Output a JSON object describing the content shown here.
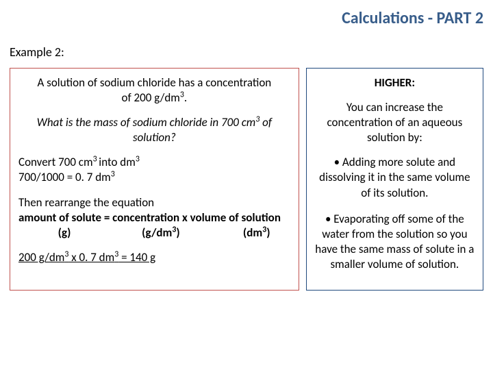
{
  "colors": {
    "title_color": "#385d8a",
    "left_border": "#c0504d",
    "right_border": "#1f497d",
    "text": "#000000",
    "background": "#ffffff"
  },
  "title": "Calculations - PART 2",
  "example_label": "Example 2:",
  "left": {
    "problem_line1": "A solution of sodium chloride has a concentration",
    "problem_line2_pre": "of 200 g/dm",
    "problem_line2_sup": "3",
    "problem_line2_post": ".",
    "question_pre": "What is the mass of sodium chloride in 700 cm",
    "question_sup": "3",
    "question_post": " of solution?",
    "convert_pre": "Convert 700 cm",
    "convert_sup1": "3 ",
    "convert_mid": "into dm",
    "convert_sup2": "3",
    "convert_calc_pre": "700/1000 = 0. 7 dm",
    "convert_calc_sup": "3",
    "rearrange_intro": "Then rearrange the equation",
    "rearrange_eq": "amount of solute = concentration x volume of solution",
    "units_g": "               (g)",
    "units_gdm_pre": "                           (g/dm",
    "units_gdm_sup": "3",
    "units_gdm_post": ")",
    "units_dm_pre": "                        (dm",
    "units_dm_sup": "3",
    "units_dm_post": ")",
    "answer_pre": "200 g/dm",
    "answer_sup1": "3",
    "answer_mid": " x 0. 7 dm",
    "answer_sup2": "3",
    "answer_post": " = 140 g"
  },
  "right": {
    "higher": "HIGHER:",
    "intro": "You can increase the concentration of an aqueous solution by:",
    "bullet1": "Adding more solute and dissolving it in the same volume of its solution.",
    "bullet2": "Evaporating off some of the water from the solution so you have the same mass of solute in a smaller volume of solution."
  }
}
